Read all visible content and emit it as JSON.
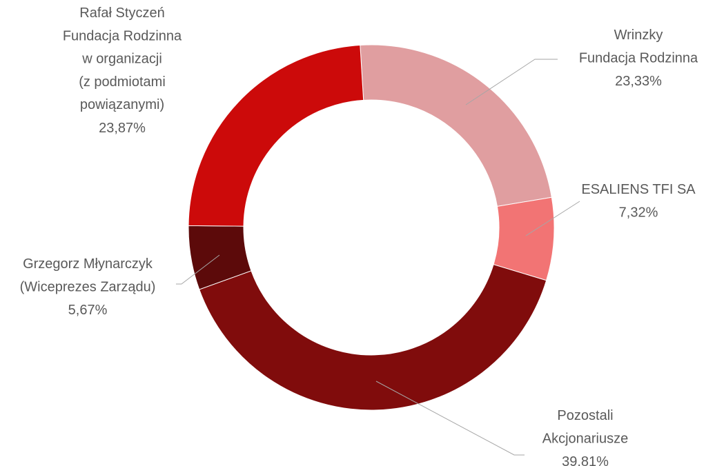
{
  "chart_data": {
    "type": "donut",
    "categories": [
      "Wrinzky\nFundacja Rodzinna",
      "ESALIENS TFI SA",
      "Pozostali\nAkcjonariusze",
      "Grzegorz Młynarczyk\n(Wiceprezes Zarządu)",
      "Rafał Styczeń\nFundacja Rodzinna\nw organizacji\n(z podmiotami\npowiązanymi)"
    ],
    "values": [
      23.33,
      7.32,
      39.81,
      5.67,
      23.87
    ],
    "value_labels": [
      "23,33%",
      "7,32%",
      "39,81%",
      "5,67%",
      "23,87%"
    ],
    "colors": [
      "#e09ea0",
      "#f27474",
      "#800c0c",
      "#5c0a0a",
      "#cc0a0a"
    ]
  }
}
